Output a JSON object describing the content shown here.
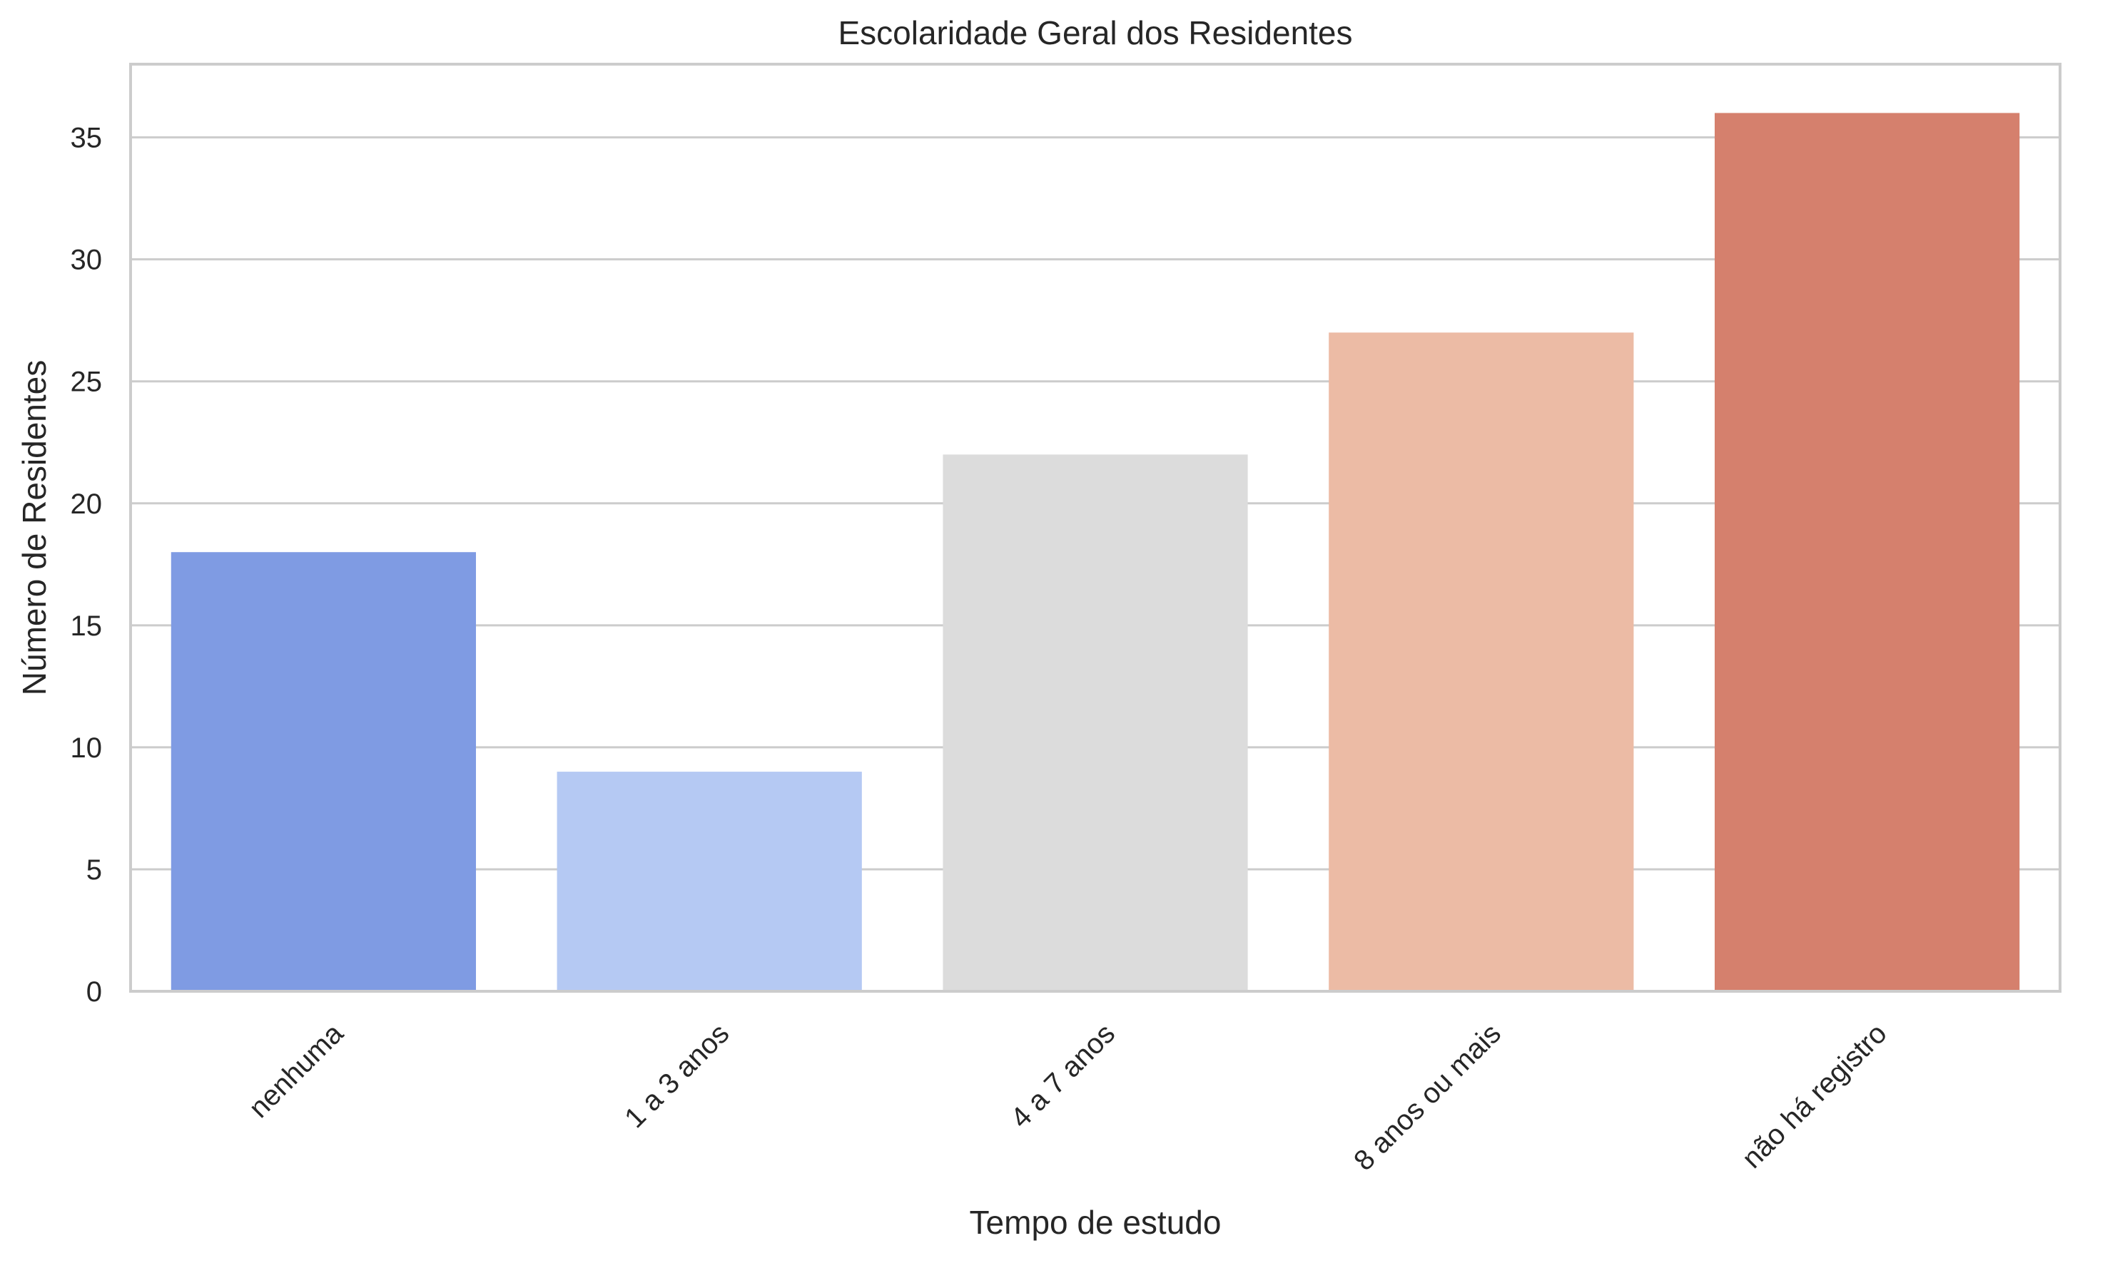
{
  "chart_data": {
    "type": "bar",
    "title": "Escolaridade Geral dos Residentes",
    "xlabel": "Tempo de estudo",
    "ylabel": "Número de Residentes",
    "categories": [
      "nenhuma",
      "1 a 3 anos",
      "4 a 7 anos",
      "8 anos ou mais",
      "não há registro"
    ],
    "values": [
      18,
      9,
      22,
      27,
      36
    ],
    "colors": [
      "#7f9be3",
      "#b5c9f3",
      "#dcdcdc",
      "#ecbba5",
      "#d5806d"
    ],
    "ylim": [
      0,
      38
    ],
    "yticks": [
      0,
      5,
      10,
      15,
      20,
      25,
      30,
      35
    ],
    "grid": true,
    "legend": "none"
  }
}
